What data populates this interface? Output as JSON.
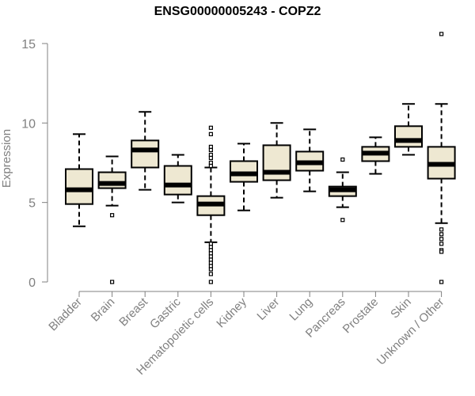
{
  "colors": {
    "box_fill": "#eee8d2",
    "box_stroke": "#000000",
    "axis": "#808080",
    "tick_label": "#808080"
  },
  "chart_data": {
    "type": "boxplot",
    "title": "ENSG00000005243 - COPZ2",
    "ylabel": "Expression",
    "xlabel": "",
    "ylim": [
      0,
      15.5
    ],
    "yticks": [
      0,
      5,
      10,
      15
    ],
    "grid": false,
    "categories": [
      "Bladder",
      "Brain",
      "Breast",
      "Gastric",
      "Hematopoietic cells",
      "Kidney",
      "Liver",
      "Lung",
      "Pancreas",
      "Prostate",
      "Skin",
      "Unknown / Other"
    ],
    "boxes": [
      {
        "category": "Bladder",
        "whisker_low": 3.5,
        "q1": 4.9,
        "median": 5.8,
        "q3": 7.1,
        "whisker_high": 9.3,
        "outliers": []
      },
      {
        "category": "Brain",
        "whisker_low": 4.8,
        "q1": 5.9,
        "median": 6.2,
        "q3": 6.9,
        "whisker_high": 7.9,
        "outliers": [
          4.2,
          0.0
        ]
      },
      {
        "category": "Breast",
        "whisker_low": 5.8,
        "q1": 7.2,
        "median": 8.3,
        "q3": 8.9,
        "whisker_high": 10.7,
        "outliers": []
      },
      {
        "category": "Gastric",
        "whisker_low": 5.0,
        "q1": 5.5,
        "median": 6.1,
        "q3": 7.3,
        "whisker_high": 8.0,
        "outliers": []
      },
      {
        "category": "Hematopoietic cells",
        "whisker_low": 2.5,
        "q1": 4.2,
        "median": 4.9,
        "q3": 5.4,
        "whisker_high": 7.2,
        "outliers": [
          9.7,
          9.3,
          8.5,
          8.3,
          8.0,
          7.8,
          7.5,
          7.3,
          2.4,
          2.2,
          2.0,
          1.8,
          1.6,
          1.4,
          1.2,
          1.0,
          0.8,
          0.5,
          0.0
        ]
      },
      {
        "category": "Kidney",
        "whisker_low": 4.5,
        "q1": 6.3,
        "median": 6.8,
        "q3": 7.6,
        "whisker_high": 8.7,
        "outliers": []
      },
      {
        "category": "Liver",
        "whisker_low": 5.3,
        "q1": 6.4,
        "median": 6.9,
        "q3": 8.6,
        "whisker_high": 10.0,
        "outliers": []
      },
      {
        "category": "Lung",
        "whisker_low": 5.7,
        "q1": 7.0,
        "median": 7.5,
        "q3": 8.2,
        "whisker_high": 9.6,
        "outliers": []
      },
      {
        "category": "Pancreas",
        "whisker_low": 4.7,
        "q1": 5.4,
        "median": 5.8,
        "q3": 6.0,
        "whisker_high": 6.9,
        "outliers": [
          7.7,
          3.9
        ]
      },
      {
        "category": "Prostate",
        "whisker_low": 6.8,
        "q1": 7.6,
        "median": 8.1,
        "q3": 8.5,
        "whisker_high": 9.1,
        "outliers": []
      },
      {
        "category": "Skin",
        "whisker_low": 8.0,
        "q1": 8.5,
        "median": 8.9,
        "q3": 9.8,
        "whisker_high": 11.2,
        "outliers": []
      },
      {
        "category": "Unknown / Other",
        "whisker_low": 3.7,
        "q1": 6.5,
        "median": 7.4,
        "q3": 8.5,
        "whisker_high": 11.2,
        "outliers": [
          15.6,
          3.3,
          3.0,
          2.7,
          2.4,
          2.0,
          1.9,
          0.0
        ]
      }
    ]
  }
}
